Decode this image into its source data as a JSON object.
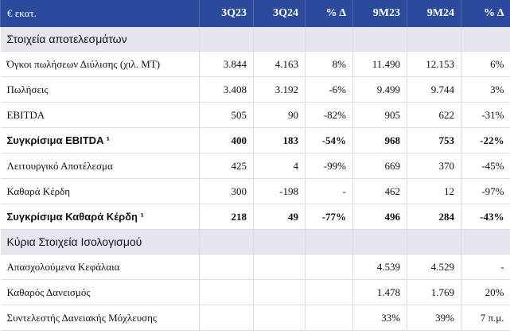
{
  "header": {
    "unit": "€ εκατ.",
    "columns": [
      "3Q23",
      "3Q24",
      "% Δ",
      "9M23",
      "9M24",
      "% Δ"
    ]
  },
  "sections": [
    {
      "title": "Στοιχεία αποτελεσμάτων",
      "rows": [
        {
          "label": "Όγκοι πωλήσεων Διύλισης (χιλ. ΜΤ)",
          "bold": false,
          "values": [
            "3.844",
            "4.163",
            "8%",
            "11.490",
            "12.153",
            "6%"
          ]
        },
        {
          "label": "Πωλήσεις",
          "bold": false,
          "values": [
            "3.408",
            "3.192",
            "-6%",
            "9.499",
            "9.744",
            "3%"
          ]
        },
        {
          "label": "EBITDA",
          "bold": false,
          "values": [
            "505",
            "90",
            "-82%",
            "905",
            "622",
            "-31%"
          ]
        },
        {
          "label": "Συγκρίσιμα EBITDA ¹",
          "bold": true,
          "values": [
            "400",
            "183",
            "-54%",
            "968",
            "753",
            "-22%"
          ]
        },
        {
          "label": "Λειτουργικό Αποτέλεσμα",
          "bold": false,
          "values": [
            "425",
            "4",
            "-99%",
            "669",
            "370",
            "-45%"
          ]
        },
        {
          "label": "Καθαρά Κέρδη",
          "bold": false,
          "values": [
            "300",
            "-198",
            "-",
            "462",
            "12",
            "-97%"
          ]
        },
        {
          "label": "Συγκρίσιμα Καθαρά Κέρδη ¹",
          "bold": true,
          "values": [
            "218",
            "49",
            "-77%",
            "496",
            "284",
            "-43%"
          ]
        }
      ]
    },
    {
      "title": "Κύρια Στοιχεία Ισολογισμού",
      "rows": [
        {
          "label": "Απασχολούμενα Κεφάλαια",
          "bold": false,
          "values": [
            "",
            "",
            "",
            "4.539",
            "4.529",
            "-"
          ]
        },
        {
          "label": "Καθαρός Δανεισμός",
          "bold": false,
          "values": [
            "",
            "",
            "",
            "1.478",
            "1.769",
            "20%"
          ]
        },
        {
          "label": "Συντελεστής Δανειακής Μόχλευσης",
          "bold": false,
          "values": [
            "",
            "",
            "",
            "33%",
            "39%",
            "7 π.μ."
          ]
        }
      ]
    }
  ],
  "colors": {
    "header_bg": "#2a4a9b",
    "section_bg": "#e5e6ee",
    "grid": "#d9dde6"
  }
}
